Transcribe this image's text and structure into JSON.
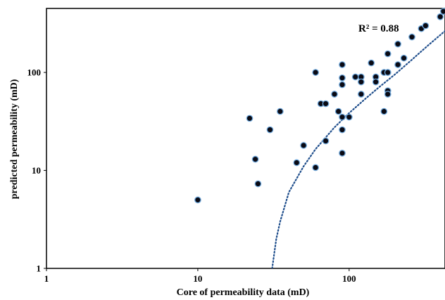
{
  "chart_data": {
    "type": "scatter",
    "xlabel": "Core of permeability data (mD)",
    "ylabel": "predicted permeability (mD)",
    "xscale": "log",
    "yscale": "log",
    "xlim": [
      1,
      430
    ],
    "ylim": [
      1,
      450
    ],
    "xticks": [
      1,
      10,
      100
    ],
    "xtick_labels": [
      "1",
      "10",
      "100"
    ],
    "yticks": [
      1,
      10,
      100
    ],
    "ytick_labels": [
      "1",
      "10",
      "100"
    ],
    "grid": false,
    "legend": "none",
    "annotation": "R² = 0.88",
    "marker_fill": "#0a0a14",
    "marker_edge": "#6fa8dc",
    "trendline_color": "#1f4e8c",
    "trendline_style": "dotted",
    "series": [
      {
        "x": [
          10,
          22,
          24,
          25,
          30,
          35,
          45,
          50,
          60,
          60,
          65,
          70,
          70,
          80,
          85,
          90,
          90,
          90,
          90,
          90,
          90,
          100,
          110,
          120,
          120,
          120,
          140,
          150,
          150,
          170,
          170,
          180,
          180,
          180,
          180,
          180,
          210,
          210,
          230,
          260,
          300,
          320,
          400,
          420
        ],
        "y": [
          5,
          34,
          13,
          7.3,
          26,
          40,
          12,
          18,
          10.7,
          100,
          48,
          20,
          48,
          60,
          40,
          120,
          75,
          35,
          26,
          15,
          88,
          35,
          90,
          90,
          80,
          60,
          125,
          90,
          80,
          40,
          100,
          155,
          100,
          65,
          60,
          100,
          195,
          120,
          140,
          230,
          280,
          300,
          370,
          420
        ]
      }
    ],
    "trendline": {
      "x": [
        31,
        33,
        35,
        40,
        50,
        60,
        80,
        100,
        130,
        160,
        200,
        260,
        330,
        430
      ],
      "y": [
        1,
        2,
        3,
        6,
        11,
        16.5,
        27.5,
        38.5,
        55,
        72,
        95,
        135,
        187,
        265
      ]
    }
  }
}
